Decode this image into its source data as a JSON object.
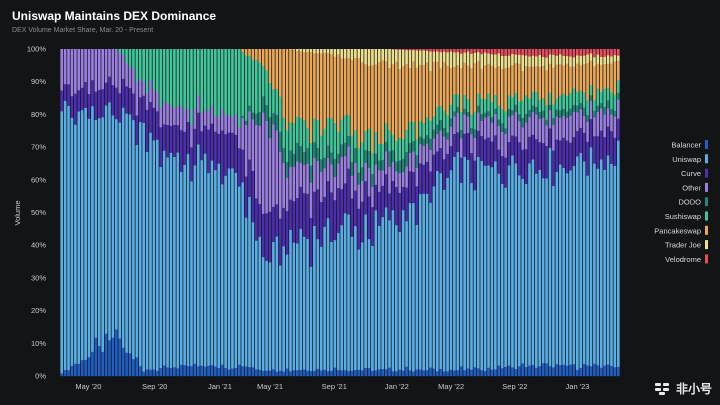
{
  "header": {
    "title": "Uniswap Maintains DEX Dominance",
    "subtitle": "DEX Volume Market Share, Mar. 20 - Present"
  },
  "watermark": {
    "text": "非小号"
  },
  "chart_data": {
    "type": "bar",
    "stacked": true,
    "title": "Uniswap Maintains DEX Dominance",
    "subtitle": "DEX Volume Market Share, Mar. 20 - Present",
    "xlabel": "",
    "ylabel": "Volume",
    "ylim": [
      0,
      100
    ],
    "y_ticks": [
      "0%",
      "10%",
      "20%",
      "30%",
      "40%",
      "50%",
      "60%",
      "70%",
      "80%",
      "90%",
      "100%"
    ],
    "x_tick_labels": [
      {
        "label": "May '20",
        "pos": 0.018
      },
      {
        "label": "Sep '20",
        "pos": 0.145
      },
      {
        "label": "Jan '21",
        "pos": 0.27
      },
      {
        "label": "May '21",
        "pos": 0.366
      },
      {
        "label": "Sep '21",
        "pos": 0.489
      },
      {
        "label": "Jan '22",
        "pos": 0.609
      },
      {
        "label": "May '22",
        "pos": 0.713
      },
      {
        "label": "Sep '22",
        "pos": 0.835
      },
      {
        "label": "Jan '23",
        "pos": 0.955
      }
    ],
    "legend_position": "right",
    "series_order": [
      "Balancer",
      "Uniswap",
      "Curve",
      "Other",
      "DODO",
      "Sushiswap",
      "Pancakeswap",
      "Trader Joe",
      "Velodrome"
    ],
    "colors": {
      "Balancer": "#1f5fc4",
      "Uniswap": "#5aaee6",
      "Curve": "#4b2fae",
      "Other": "#9b7fe0",
      "DODO": "#24867a",
      "Sushiswap": "#3fc79b",
      "Pancakeswap": "#e9a857",
      "Trader Joe": "#ece08e",
      "Velodrome": "#e84c5f"
    },
    "n_periods": 164,
    "segment_start_shares": [
      {
        "start": 0,
        "Balancer": 1,
        "Uniswap": 80,
        "Curve": 7,
        "Other": 12,
        "DODO": 0,
        "Sushiswap": 0,
        "Pancakeswap": 0,
        "Trader Joe": 0,
        "Velodrome": 0
      },
      {
        "start": 16,
        "Balancer": 12,
        "Uniswap": 68,
        "Curve": 8,
        "Other": 12,
        "DODO": 0,
        "Sushiswap": 0,
        "Pancakeswap": 0,
        "Trader Joe": 0,
        "Velodrome": 0
      },
      {
        "start": 24,
        "Balancer": 2,
        "Uniswap": 72,
        "Curve": 10,
        "Other": 6,
        "DODO": 0,
        "Sushiswap": 10,
        "Pancakeswap": 0,
        "Trader Joe": 0,
        "Velodrome": 0
      },
      {
        "start": 36,
        "Balancer": 3,
        "Uniswap": 63,
        "Curve": 10,
        "Other": 6,
        "DODO": 0,
        "Sushiswap": 18,
        "Pancakeswap": 0,
        "Trader Joe": 0,
        "Velodrome": 0
      },
      {
        "start": 52,
        "Balancer": 3,
        "Uniswap": 58,
        "Curve": 12,
        "Other": 6,
        "DODO": 0,
        "Sushiswap": 21,
        "Pancakeswap": 0,
        "Trader Joe": 0,
        "Velodrome": 0
      },
      {
        "start": 60,
        "Balancer": 2,
        "Uniswap": 33,
        "Curve": 12,
        "Other": 30,
        "DODO": 5,
        "Sushiswap": 12,
        "Pancakeswap": 6,
        "Trader Joe": 0,
        "Velodrome": 0
      },
      {
        "start": 66,
        "Balancer": 2,
        "Uniswap": 40,
        "Curve": 12,
        "Other": 10,
        "DODO": 5,
        "Sushiswap": 8,
        "Pancakeswap": 23,
        "Trader Joe": 0,
        "Velodrome": 0
      },
      {
        "start": 80,
        "Balancer": 2,
        "Uniswap": 42,
        "Curve": 12,
        "Other": 8,
        "DODO": 4,
        "Sushiswap": 8,
        "Pancakeswap": 22,
        "Trader Joe": 2,
        "Velodrome": 0
      },
      {
        "start": 96,
        "Balancer": 2,
        "Uniswap": 45,
        "Curve": 10,
        "Other": 6,
        "DODO": 4,
        "Sushiswap": 6,
        "Pancakeswap": 22,
        "Trader Joe": 5,
        "Velodrome": 0
      },
      {
        "start": 116,
        "Balancer": 2,
        "Uniswap": 60,
        "Curve": 8,
        "Other": 6,
        "DODO": 2,
        "Sushiswap": 5,
        "Pancakeswap": 12,
        "Trader Joe": 4,
        "Velodrome": 1
      },
      {
        "start": 140,
        "Balancer": 3,
        "Uniswap": 62,
        "Curve": 9,
        "Other": 6,
        "DODO": 2,
        "Sushiswap": 4,
        "Pancakeswap": 9,
        "Trader Joe": 3,
        "Velodrome": 2
      },
      {
        "start": 164,
        "Balancer": 3,
        "Uniswap": 65,
        "Curve": 8,
        "Other": 6,
        "DODO": 2,
        "Sushiswap": 4,
        "Pancakeswap": 8,
        "Trader Joe": 2,
        "Velodrome": 2
      }
    ]
  }
}
